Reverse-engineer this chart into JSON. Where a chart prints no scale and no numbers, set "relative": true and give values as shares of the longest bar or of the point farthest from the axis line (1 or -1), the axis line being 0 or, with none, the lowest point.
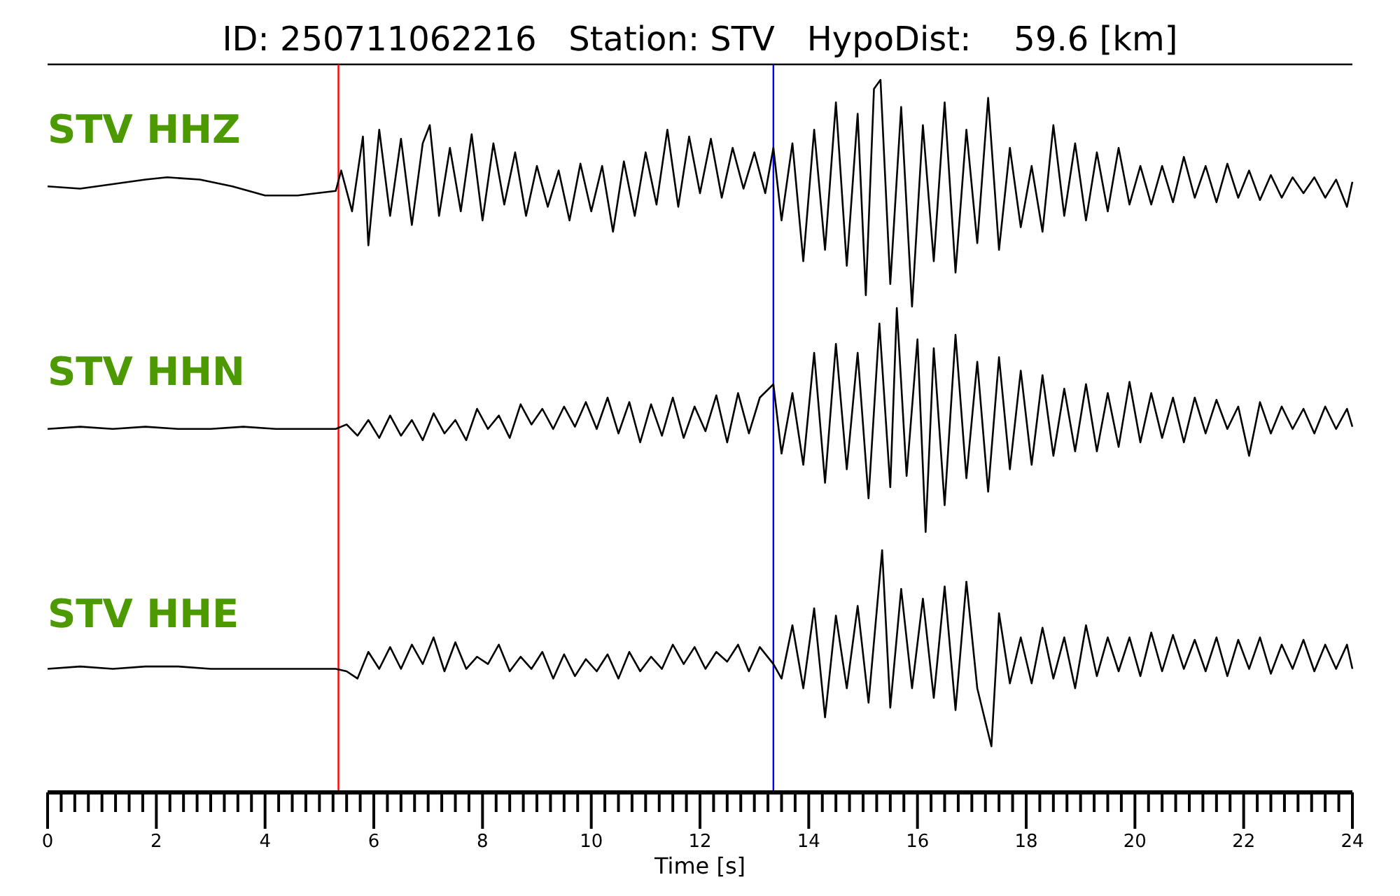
{
  "chart_data": [
    {
      "type": "line",
      "title": "ID: 250711062216   Station: STV   HypoDist:    59.6 [km]",
      "relative": true,
      "xlim": [
        0,
        24
      ],
      "tick_labels": false,
      "ref_lines": [
        {
          "axis": "x",
          "value": 5.35,
          "color": "#ff0000"
        },
        {
          "axis": "x",
          "value": 13.35,
          "color": "#0000ff"
        }
      ],
      "series": [
        {
          "name": "STV HHZ",
          "color": "#000000",
          "x": [
            0,
            0.6,
            1.2,
            1.8,
            2.2,
            2.8,
            3.4,
            4.0,
            4.6,
            5.3,
            5.4,
            5.6,
            5.8,
            5.9,
            6.1,
            6.3,
            6.5,
            6.7,
            6.9,
            7.03,
            7.2,
            7.4,
            7.6,
            7.8,
            8.0,
            8.2,
            8.4,
            8.6,
            8.8,
            9.0,
            9.2,
            9.4,
            9.6,
            9.8,
            10.0,
            10.2,
            10.4,
            10.6,
            10.8,
            11.0,
            11.2,
            11.4,
            11.6,
            11.8,
            12.0,
            12.2,
            12.4,
            12.6,
            12.8,
            13.0,
            13.2,
            13.35,
            13.5,
            13.7,
            13.9,
            14.1,
            14.3,
            14.5,
            14.7,
            14.9,
            15.05,
            15.2,
            15.32,
            15.5,
            15.7,
            15.9,
            16.1,
            16.3,
            16.5,
            16.7,
            16.9,
            17.1,
            17.3,
            17.5,
            17.7,
            17.9,
            18.1,
            18.3,
            18.5,
            18.7,
            18.9,
            19.1,
            19.3,
            19.5,
            19.7,
            19.9,
            20.1,
            20.3,
            20.5,
            20.7,
            20.9,
            21.1,
            21.3,
            21.5,
            21.7,
            21.9,
            22.1,
            22.3,
            22.5,
            22.7,
            22.9,
            23.1,
            23.3,
            23.5,
            23.7,
            23.9,
            24.0
          ],
          "values": [
            0.53,
            0.52,
            0.54,
            0.56,
            0.57,
            0.56,
            0.53,
            0.49,
            0.49,
            0.51,
            0.6,
            0.42,
            0.75,
            0.27,
            0.78,
            0.4,
            0.74,
            0.36,
            0.72,
            0.8,
            0.4,
            0.7,
            0.42,
            0.76,
            0.38,
            0.72,
            0.45,
            0.68,
            0.4,
            0.62,
            0.44,
            0.6,
            0.38,
            0.63,
            0.42,
            0.62,
            0.33,
            0.64,
            0.4,
            0.68,
            0.45,
            0.78,
            0.44,
            0.75,
            0.5,
            0.74,
            0.48,
            0.7,
            0.52,
            0.68,
            0.5,
            0.7,
            0.38,
            0.72,
            0.2,
            0.78,
            0.25,
            0.9,
            0.18,
            0.85,
            0.05,
            0.96,
            1.0,
            0.1,
            0.88,
            0.0,
            0.8,
            0.2,
            0.9,
            0.15,
            0.78,
            0.28,
            0.92,
            0.25,
            0.7,
            0.35,
            0.62,
            0.33,
            0.8,
            0.4,
            0.72,
            0.38,
            0.68,
            0.42,
            0.7,
            0.45,
            0.62,
            0.45,
            0.62,
            0.46,
            0.66,
            0.48,
            0.62,
            0.46,
            0.63,
            0.48,
            0.6,
            0.47,
            0.58,
            0.48,
            0.57,
            0.5,
            0.57,
            0.48,
            0.56,
            0.44,
            0.55
          ]
        }
      ]
    },
    {
      "type": "line",
      "relative": true,
      "xlim": [
        0,
        24
      ],
      "tick_labels": false,
      "ref_lines": [
        {
          "axis": "x",
          "value": 5.35,
          "color": "#ff0000"
        },
        {
          "axis": "x",
          "value": 13.35,
          "color": "#0000ff"
        }
      ],
      "series": [
        {
          "name": "STV HHN",
          "color": "#000000",
          "x": [
            0,
            0.6,
            1.2,
            1.8,
            2.4,
            3.0,
            3.6,
            4.2,
            4.8,
            5.3,
            5.5,
            5.7,
            5.9,
            6.1,
            6.3,
            6.5,
            6.7,
            6.9,
            7.1,
            7.3,
            7.5,
            7.7,
            7.9,
            8.1,
            8.3,
            8.5,
            8.7,
            8.9,
            9.1,
            9.3,
            9.5,
            9.7,
            9.9,
            10.1,
            10.3,
            10.5,
            10.7,
            10.9,
            11.1,
            11.3,
            11.5,
            11.7,
            11.9,
            12.1,
            12.3,
            12.5,
            12.7,
            12.9,
            13.1,
            13.35,
            13.5,
            13.7,
            13.9,
            14.1,
            14.3,
            14.5,
            14.7,
            14.9,
            15.1,
            15.3,
            15.5,
            15.62,
            15.8,
            16.0,
            16.15,
            16.3,
            16.5,
            16.7,
            16.9,
            17.1,
            17.3,
            17.5,
            17.7,
            17.9,
            18.1,
            18.3,
            18.5,
            18.7,
            18.9,
            19.1,
            19.3,
            19.5,
            19.7,
            19.9,
            20.1,
            20.3,
            20.5,
            20.7,
            20.9,
            21.1,
            21.3,
            21.5,
            21.7,
            21.9,
            22.1,
            22.3,
            22.5,
            22.7,
            22.9,
            23.1,
            23.3,
            23.5,
            23.7,
            23.9,
            24.0
          ],
          "values": [
            0.46,
            0.47,
            0.46,
            0.47,
            0.46,
            0.46,
            0.47,
            0.46,
            0.46,
            0.46,
            0.48,
            0.43,
            0.5,
            0.42,
            0.52,
            0.43,
            0.5,
            0.41,
            0.53,
            0.44,
            0.5,
            0.41,
            0.55,
            0.46,
            0.52,
            0.42,
            0.57,
            0.48,
            0.55,
            0.46,
            0.56,
            0.47,
            0.58,
            0.46,
            0.6,
            0.44,
            0.58,
            0.4,
            0.57,
            0.43,
            0.6,
            0.42,
            0.56,
            0.45,
            0.61,
            0.4,
            0.62,
            0.44,
            0.6,
            0.66,
            0.35,
            0.62,
            0.3,
            0.8,
            0.22,
            0.84,
            0.28,
            0.8,
            0.15,
            0.93,
            0.2,
            1.0,
            0.25,
            0.86,
            0.0,
            0.82,
            0.12,
            0.88,
            0.24,
            0.76,
            0.18,
            0.78,
            0.28,
            0.72,
            0.3,
            0.7,
            0.34,
            0.64,
            0.36,
            0.66,
            0.36,
            0.62,
            0.38,
            0.67,
            0.4,
            0.62,
            0.42,
            0.6,
            0.4,
            0.6,
            0.44,
            0.59,
            0.46,
            0.56,
            0.34,
            0.58,
            0.44,
            0.56,
            0.46,
            0.55,
            0.44,
            0.56,
            0.46,
            0.55,
            0.47
          ]
        }
      ]
    },
    {
      "type": "line",
      "relative": true,
      "xlim": [
        0,
        24
      ],
      "tick_labels": "x",
      "xlabel": "Time [s]",
      "xticks": [
        0,
        {
          "value": 0.25,
          "label": null
        },
        {
          "value": 0.5,
          "label": null
        },
        {
          "value": 0.75,
          "label": null
        },
        {
          "value": 1,
          "label": null
        },
        {
          "value": 1.25,
          "label": null
        },
        {
          "value": 1.5,
          "label": null
        },
        {
          "value": 1.75,
          "label": null
        },
        2,
        {
          "value": 2.25,
          "label": null
        },
        {
          "value": 2.5,
          "label": null
        },
        {
          "value": 2.75,
          "label": null
        },
        {
          "value": 3,
          "label": null
        },
        {
          "value": 3.25,
          "label": null
        },
        {
          "value": 3.5,
          "label": null
        },
        {
          "value": 3.75,
          "label": null
        },
        4,
        {
          "value": 4.25,
          "label": null
        },
        {
          "value": 4.5,
          "label": null
        },
        {
          "value": 4.75,
          "label": null
        },
        {
          "value": 5,
          "label": null
        },
        {
          "value": 5.25,
          "label": null
        },
        {
          "value": 5.5,
          "label": null
        },
        {
          "value": 5.75,
          "label": null
        },
        6,
        {
          "value": 6.25,
          "label": null
        },
        {
          "value": 6.5,
          "label": null
        },
        {
          "value": 6.75,
          "label": null
        },
        {
          "value": 7,
          "label": null
        },
        {
          "value": 7.25,
          "label": null
        },
        {
          "value": 7.5,
          "label": null
        },
        {
          "value": 7.75,
          "label": null
        },
        8,
        {
          "value": 8.25,
          "label": null
        },
        {
          "value": 8.5,
          "label": null
        },
        {
          "value": 8.75,
          "label": null
        },
        {
          "value": 9,
          "label": null
        },
        {
          "value": 9.25,
          "label": null
        },
        {
          "value": 9.5,
          "label": null
        },
        {
          "value": 9.75,
          "label": null
        },
        10,
        {
          "value": 10.25,
          "label": null
        },
        {
          "value": 10.5,
          "label": null
        },
        {
          "value": 10.75,
          "label": null
        },
        {
          "value": 11,
          "label": null
        },
        {
          "value": 11.25,
          "label": null
        },
        {
          "value": 11.5,
          "label": null
        },
        {
          "value": 11.75,
          "label": null
        },
        12,
        {
          "value": 12.25,
          "label": null
        },
        {
          "value": 12.5,
          "label": null
        },
        {
          "value": 12.75,
          "label": null
        },
        {
          "value": 13,
          "label": null
        },
        {
          "value": 13.25,
          "label": null
        },
        {
          "value": 13.5,
          "label": null
        },
        {
          "value": 13.75,
          "label": null
        },
        14,
        {
          "value": 14.25,
          "label": null
        },
        {
          "value": 14.5,
          "label": null
        },
        {
          "value": 14.75,
          "label": null
        },
        {
          "value": 15,
          "label": null
        },
        {
          "value": 15.25,
          "label": null
        },
        {
          "value": 15.5,
          "label": null
        },
        {
          "value": 15.75,
          "label": null
        },
        16,
        {
          "value": 16.25,
          "label": null
        },
        {
          "value": 16.5,
          "label": null
        },
        {
          "value": 16.75,
          "label": null
        },
        {
          "value": 17,
          "label": null
        },
        {
          "value": 17.25,
          "label": null
        },
        {
          "value": 17.5,
          "label": null
        },
        {
          "value": 17.75,
          "label": null
        },
        18,
        {
          "value": 18.25,
          "label": null
        },
        {
          "value": 18.5,
          "label": null
        },
        {
          "value": 18.75,
          "label": null
        },
        {
          "value": 19,
          "label": null
        },
        {
          "value": 19.25,
          "label": null
        },
        {
          "value": 19.5,
          "label": null
        },
        {
          "value": 19.75,
          "label": null
        },
        20,
        {
          "value": 20.25,
          "label": null
        },
        {
          "value": 20.5,
          "label": null
        },
        {
          "value": 20.75,
          "label": null
        },
        {
          "value": 21,
          "label": null
        },
        {
          "value": 21.25,
          "label": null
        },
        {
          "value": 21.5,
          "label": null
        },
        {
          "value": 21.75,
          "label": null
        },
        22,
        {
          "value": 22.25,
          "label": null
        },
        {
          "value": 22.5,
          "label": null
        },
        {
          "value": 22.75,
          "label": null
        },
        {
          "value": 23,
          "label": null
        },
        {
          "value": 23.25,
          "label": null
        },
        {
          "value": 23.5,
          "label": null
        },
        {
          "value": 23.75,
          "label": null
        },
        24
      ],
      "ref_lines": [
        {
          "axis": "x",
          "value": 5.35,
          "color": "#ff0000"
        },
        {
          "axis": "x",
          "value": 13.35,
          "color": "#0000ff"
        }
      ],
      "series": [
        {
          "name": "STV HHE",
          "color": "#000000",
          "x": [
            0,
            0.6,
            1.2,
            1.8,
            2.4,
            3.0,
            3.6,
            4.2,
            4.8,
            5.3,
            5.5,
            5.7,
            5.9,
            6.1,
            6.3,
            6.5,
            6.7,
            6.9,
            7.1,
            7.3,
            7.5,
            7.7,
            7.9,
            8.1,
            8.3,
            8.5,
            8.7,
            8.9,
            9.1,
            9.3,
            9.5,
            9.7,
            9.9,
            10.1,
            10.3,
            10.5,
            10.7,
            10.9,
            11.1,
            11.3,
            11.5,
            11.7,
            11.9,
            12.1,
            12.3,
            12.5,
            12.7,
            12.9,
            13.1,
            13.35,
            13.5,
            13.7,
            13.9,
            14.1,
            14.3,
            14.5,
            14.7,
            14.9,
            15.1,
            15.35,
            15.5,
            15.7,
            15.9,
            16.1,
            16.3,
            16.5,
            16.7,
            16.9,
            17.1,
            17.36,
            17.5,
            17.7,
            17.9,
            18.1,
            18.3,
            18.5,
            18.7,
            18.9,
            19.1,
            19.3,
            19.5,
            19.7,
            19.9,
            20.1,
            20.3,
            20.5,
            20.7,
            20.9,
            21.1,
            21.3,
            21.5,
            21.7,
            21.9,
            22.1,
            22.3,
            22.5,
            22.7,
            22.9,
            23.1,
            23.3,
            23.5,
            23.7,
            23.9,
            24.0
          ],
          "values": [
            0.51,
            0.52,
            0.51,
            0.52,
            0.52,
            0.51,
            0.51,
            0.51,
            0.51,
            0.51,
            0.5,
            0.47,
            0.58,
            0.51,
            0.6,
            0.51,
            0.61,
            0.53,
            0.64,
            0.5,
            0.62,
            0.51,
            0.56,
            0.53,
            0.61,
            0.5,
            0.56,
            0.51,
            0.58,
            0.47,
            0.57,
            0.48,
            0.55,
            0.5,
            0.57,
            0.47,
            0.58,
            0.5,
            0.56,
            0.51,
            0.61,
            0.53,
            0.6,
            0.51,
            0.58,
            0.54,
            0.61,
            0.5,
            0.6,
            0.53,
            0.47,
            0.69,
            0.43,
            0.76,
            0.31,
            0.73,
            0.43,
            0.77,
            0.37,
            1.0,
            0.35,
            0.84,
            0.43,
            0.8,
            0.39,
            0.85,
            0.34,
            0.87,
            0.43,
            0.19,
            0.74,
            0.45,
            0.64,
            0.45,
            0.68,
            0.47,
            0.64,
            0.43,
            0.69,
            0.48,
            0.64,
            0.5,
            0.64,
            0.48,
            0.66,
            0.5,
            0.65,
            0.51,
            0.63,
            0.5,
            0.64,
            0.48,
            0.63,
            0.51,
            0.64,
            0.49,
            0.61,
            0.51,
            0.63,
            0.5,
            0.61,
            0.51,
            0.61,
            0.51
          ]
        }
      ]
    }
  ]
}
